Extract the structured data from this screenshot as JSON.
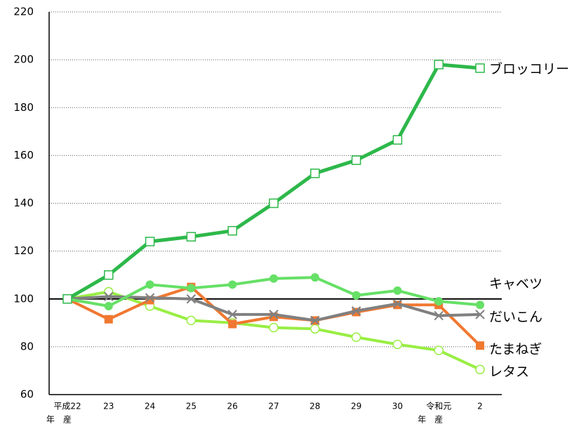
{
  "chart_data": {
    "type": "line",
    "categories": [
      "平成22",
      "23",
      "24",
      "25",
      "26",
      "27",
      "28",
      "29",
      "30",
      "令和元",
      "2"
    ],
    "category_notes": [
      "年　産",
      null,
      null,
      null,
      null,
      null,
      null,
      null,
      null,
      "年　産",
      null
    ],
    "ylim": [
      60,
      220
    ],
    "yticks": [
      60,
      80,
      100,
      120,
      140,
      160,
      180,
      200,
      220
    ],
    "grid": true,
    "reference_line": 100,
    "series": [
      {
        "name": "レタス",
        "color": "#99ee44",
        "marker": "open-circle",
        "values": [
          100,
          103,
          97,
          91,
          90,
          88,
          87.5,
          84,
          81,
          78.5,
          70.5
        ]
      },
      {
        "name": "たまねぎ",
        "color": "#f07830",
        "marker": "square",
        "values": [
          100,
          91.5,
          99.5,
          105,
          89.5,
          92.5,
          91,
          94.5,
          97.5,
          97.5,
          80.5
        ]
      },
      {
        "name": "だいこん",
        "color": "#808080",
        "marker": "x",
        "values": [
          100,
          101,
          100.5,
          100,
          93.5,
          93.5,
          91,
          95,
          98,
          93,
          93.5
        ]
      },
      {
        "name": "キャベツ",
        "color": "#66e066",
        "marker": "circle",
        "values": [
          100,
          97,
          106,
          104.5,
          106,
          108.5,
          109,
          101.5,
          103.5,
          99,
          97.5
        ]
      },
      {
        "name": "ブロッコリー",
        "color": "#2db84a",
        "marker": "open-square",
        "values": [
          100,
          110,
          124,
          126,
          128.5,
          140,
          152.5,
          158,
          166.5,
          198,
          196.5
        ]
      }
    ]
  }
}
